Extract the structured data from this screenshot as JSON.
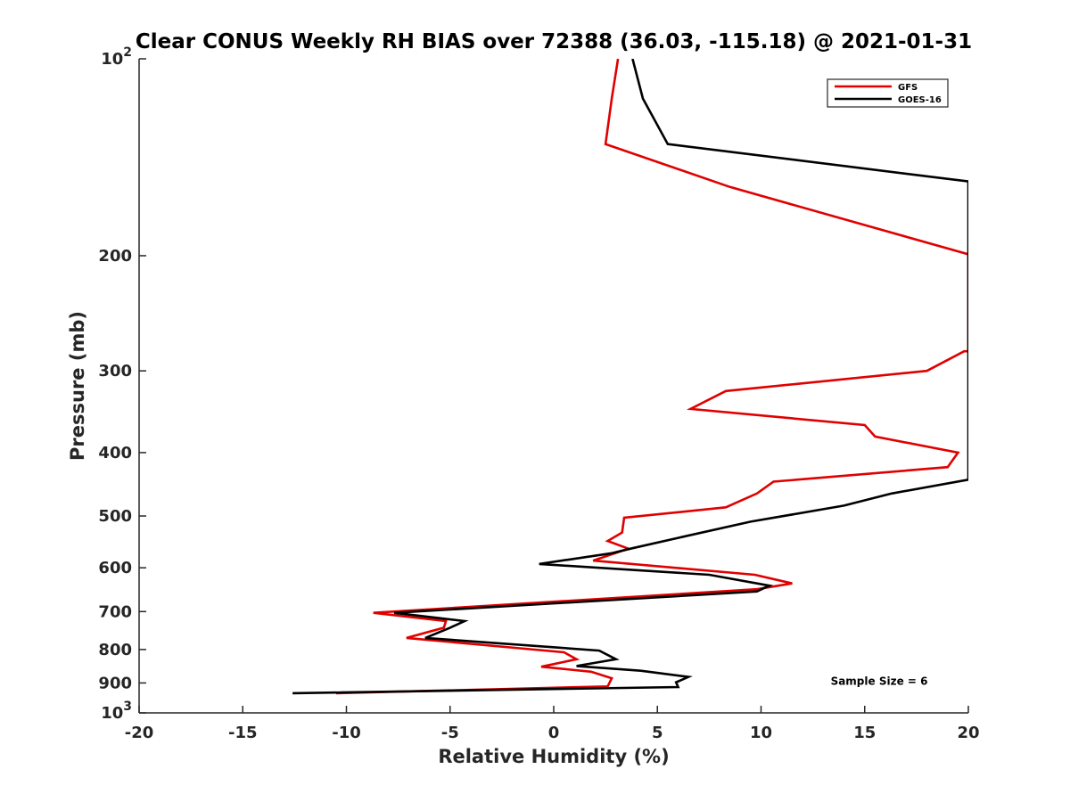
{
  "chart_data": {
    "type": "line",
    "title": "Clear CONUS Weekly RH BIAS over 72388 (36.03, -115.18) @ 2021-01-31",
    "xlabel": "Relative Humidity (%)",
    "ylabel": "Pressure (mb)",
    "xlim": [
      -20,
      20
    ],
    "ylim": [
      1000,
      100
    ],
    "y_scale": "log",
    "y_reversed": true,
    "x_ticks": [
      "-20",
      "-15",
      "-10",
      "-5",
      "0",
      "5",
      "10",
      "15",
      "20"
    ],
    "y_ticks": [
      {
        "value": 100,
        "base": "10",
        "exp": "2"
      },
      {
        "value": 200,
        "label": "200"
      },
      {
        "value": 300,
        "label": "300"
      },
      {
        "value": 400,
        "label": "400"
      },
      {
        "value": 500,
        "label": "500"
      },
      {
        "value": 600,
        "label": "600"
      },
      {
        "value": 700,
        "label": "700"
      },
      {
        "value": 800,
        "label": "800"
      },
      {
        "value": 900,
        "label": "900"
      },
      {
        "value": 1000,
        "base": "10",
        "exp": "3"
      }
    ],
    "grid": false,
    "legend_position": "top-right",
    "series": [
      {
        "name": "GFS",
        "color": "#e00000",
        "points": [
          [
            3.1,
            100
          ],
          [
            2.8,
            115
          ],
          [
            2.5,
            135
          ],
          [
            8.5,
            157
          ],
          [
            20,
            199
          ],
          [
            20,
            280
          ],
          [
            19.8,
            280
          ],
          [
            18.0,
            300
          ],
          [
            8.3,
            322
          ],
          [
            6.6,
            343
          ],
          [
            15.0,
            363
          ],
          [
            15.5,
            378
          ],
          [
            19.5,
            400
          ],
          [
            19.0,
            421
          ],
          [
            10.6,
            443
          ],
          [
            9.8,
            462
          ],
          [
            8.3,
            485
          ],
          [
            3.4,
            503
          ],
          [
            3.3,
            530
          ],
          [
            2.6,
            546
          ],
          [
            3.6,
            561
          ],
          [
            1.9,
            585
          ],
          [
            9.7,
            615
          ],
          [
            11.5,
            634
          ],
          [
            9.8,
            647
          ],
          [
            -8.7,
            703
          ],
          [
            -5.2,
            724
          ],
          [
            -5.3,
            741
          ],
          [
            -7.1,
            768
          ],
          [
            0.5,
            808
          ],
          [
            1.1,
            828
          ],
          [
            -0.6,
            850
          ],
          [
            1.8,
            865
          ],
          [
            2.8,
            885
          ],
          [
            2.6,
            911
          ],
          [
            -10.5,
            933
          ]
        ]
      },
      {
        "name": "GOES-16",
        "color": "#000000",
        "points": [
          [
            3.8,
            100
          ],
          [
            4.3,
            115
          ],
          [
            5.5,
            135
          ],
          [
            20,
            154
          ],
          [
            20,
            440
          ],
          [
            16.3,
            462
          ],
          [
            14.0,
            482
          ],
          [
            9.5,
            510
          ],
          [
            6.0,
            540
          ],
          [
            3.8,
            560
          ],
          [
            2.8,
            570
          ],
          [
            -0.7,
            592
          ],
          [
            7.5,
            615
          ],
          [
            10.4,
            639
          ],
          [
            9.8,
            652
          ],
          [
            -7.7,
            703
          ],
          [
            -4.3,
            724
          ],
          [
            -5.0,
            741
          ],
          [
            -6.2,
            768
          ],
          [
            2.2,
            803
          ],
          [
            3.0,
            828
          ],
          [
            1.1,
            848
          ],
          [
            4.2,
            862
          ],
          [
            6.5,
            881
          ],
          [
            5.9,
            898
          ],
          [
            6.0,
            913
          ],
          [
            -12.6,
            933
          ]
        ]
      }
    ],
    "annotations": [
      {
        "text": "Sample Size = 6",
        "x": 15.7,
        "y": 900
      }
    ]
  }
}
